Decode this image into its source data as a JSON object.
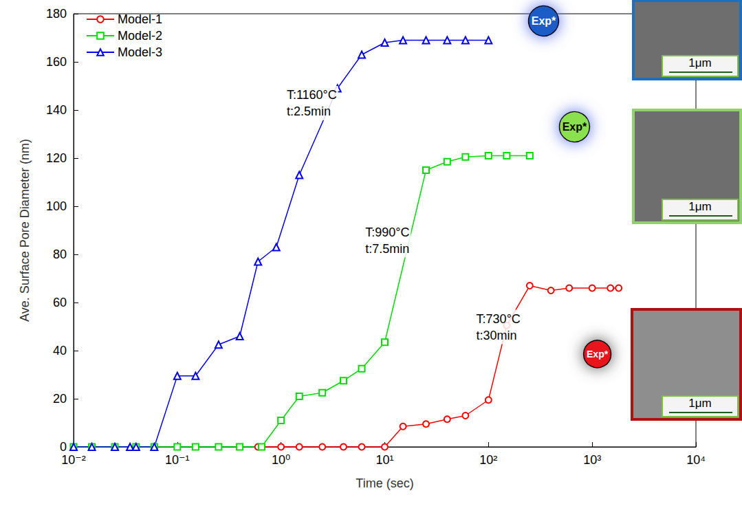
{
  "chart_data": {
    "type": "line",
    "x_label": "Time (sec)",
    "y_label": "Ave. Surface Pore Diameter (nm)",
    "log": "x",
    "grid": false,
    "legend": "top-left",
    "xlim": [
      0.01,
      10000
    ],
    "xticks": [
      {
        "value": 0.01,
        "label": "10⁻²"
      },
      {
        "value": 0.1,
        "label": "10⁻¹"
      },
      {
        "value": 1,
        "label": "10⁰"
      },
      {
        "value": 10,
        "label": "10¹"
      },
      {
        "value": 100,
        "label": "10²"
      },
      {
        "value": 1000,
        "label": "10³"
      },
      {
        "value": 10000,
        "label": "10⁴"
      }
    ],
    "ylim": [
      0,
      180
    ],
    "yticks": [
      0,
      20,
      40,
      60,
      80,
      100,
      120,
      140,
      160,
      180
    ],
    "series": [
      {
        "name": "Model-1",
        "color": "#ff0000",
        "marker": "circle",
        "x": [
          0.6,
          1,
          1.5,
          2.5,
          4,
          6,
          10,
          15,
          25,
          40,
          60,
          100,
          150,
          250,
          400,
          600,
          1000,
          1500,
          1800
        ],
        "values": [
          0,
          0,
          0,
          0,
          0,
          0,
          0,
          8.5,
          9.5,
          11.5,
          13,
          19.5,
          50.5,
          67,
          65,
          66,
          66,
          66,
          66
        ]
      },
      {
        "name": "Model-2",
        "color": "#00dd00",
        "marker": "square",
        "x": [
          0.01,
          0.015,
          0.025,
          0.04,
          0.06,
          0.1,
          0.15,
          0.25,
          0.4,
          0.65,
          1,
          1.5,
          2.5,
          4,
          6,
          10,
          25,
          40,
          60,
          100,
          150,
          250
        ],
        "values": [
          0,
          0,
          0,
          0,
          0,
          0,
          0,
          0,
          0,
          0,
          11,
          21,
          22.5,
          27.5,
          32.5,
          43.5,
          115,
          118.5,
          120.5,
          121,
          121,
          121
        ]
      },
      {
        "name": "Model-3",
        "color": "#0000ee",
        "marker": "triangle",
        "x": [
          0.01,
          0.015,
          0.025,
          0.035,
          0.04,
          0.06,
          0.1,
          0.15,
          0.25,
          0.4,
          0.6,
          0.9,
          1.5,
          3.5,
          6,
          10,
          15,
          25,
          40,
          60,
          100
        ],
        "values": [
          0,
          0,
          0,
          0,
          0,
          0,
          29.5,
          29.5,
          42.5,
          46,
          77,
          83,
          113,
          149,
          163,
          168,
          169,
          169,
          169,
          169,
          169
        ]
      }
    ],
    "annotations": [
      {
        "lines": [
          "T:1160°C",
          "t:2.5min"
        ],
        "x": 1.1,
        "y": 150
      },
      {
        "lines": [
          "T:990°C",
          "t:7.5min"
        ],
        "x": 6.3,
        "y": 93
      },
      {
        "lines": [
          "T:730°C",
          "t:30min"
        ],
        "x": 74,
        "y": 57
      }
    ],
    "markers": [
      {
        "text": "Exp*",
        "x": 340,
        "y": 177,
        "color": "#1e5bc6"
      },
      {
        "text": "Exp*",
        "x": 675,
        "y": 133,
        "color": "#8be04e"
      },
      {
        "text": "Exp*",
        "x": 1120,
        "y": 38.6,
        "color": "#e8141b"
      }
    ],
    "images": [
      {
        "scale_label": "1μm",
        "color": "#1f6fbf"
      },
      {
        "scale_label": "1μm",
        "color": "#8fd16a"
      },
      {
        "scale_label": "1μm",
        "color": "#b01010"
      }
    ]
  }
}
